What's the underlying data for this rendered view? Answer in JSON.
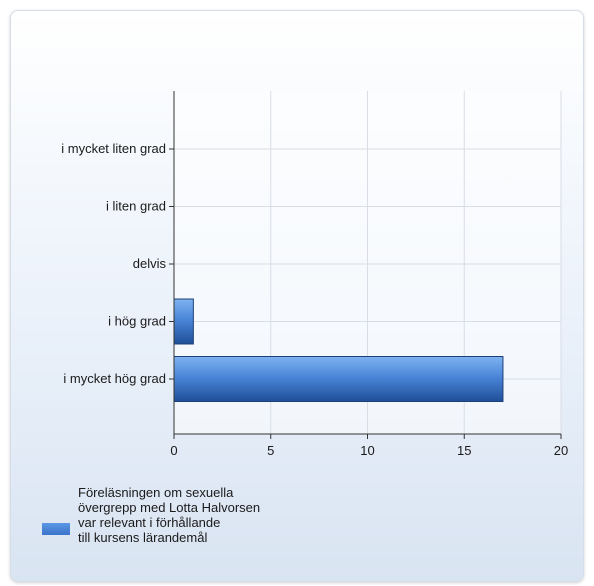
{
  "chart_data": {
    "type": "bar",
    "orientation": "horizontal",
    "categories": [
      "i mycket liten grad",
      "i liten grad",
      "delvis",
      "i hög grad",
      "i mycket hög grad"
    ],
    "series": [
      {
        "name": "Föreläsningen om sexuella övergrepp med Lotta Halvorsen var relevant i förhållande till kursens lärandemål",
        "values": [
          0,
          0,
          0,
          1,
          17
        ],
        "color": "#4a86d8"
      }
    ],
    "xlim": [
      0,
      20
    ],
    "xticks": [
      0,
      5,
      10,
      15,
      20
    ],
    "grid": true,
    "legend_position": "bottom-left"
  },
  "legend": {
    "lines": [
      "Föreläsningen om sexuella",
      "övergrepp med Lotta Halvorsen",
      "var relevant i förhållande",
      "till kursens lärandemål"
    ]
  }
}
